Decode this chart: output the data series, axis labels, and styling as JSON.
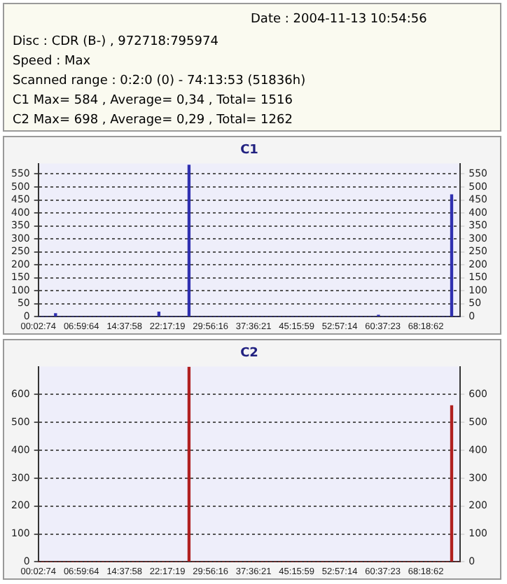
{
  "chart_data": [
    {
      "type": "other",
      "annotations": [
        "Date : 2004-11-13 10:54:56",
        "Disc : CDR (B-) , 972718:795974",
        "Speed : Max",
        "Scanned range : 0:2:0 (0) - 74:13:53 (51836h)",
        "C1 Max= 584 , Average= 0,34 , Total= 1516",
        "C2 Max= 698 , Average= 0,29 , Total= 1262"
      ]
    },
    {
      "type": "bar",
      "title": "C1",
      "categories": [
        "00:02:74",
        null,
        null,
        null,
        null,
        null,
        null,
        null,
        null,
        null,
        "06:59:64",
        null,
        null,
        null,
        null,
        null,
        null,
        null,
        null,
        null,
        "14:37:58",
        null,
        null,
        null,
        null,
        null,
        null,
        null,
        null,
        null,
        "22:17:19",
        null,
        null,
        null,
        null,
        null,
        null,
        null,
        null,
        null,
        "29:56:16",
        null,
        null,
        null,
        null,
        null,
        null,
        null,
        null,
        null,
        "37:36:21",
        null,
        null,
        null,
        null,
        null,
        null,
        null,
        null,
        null,
        "45:15:59",
        null,
        null,
        null,
        null,
        null,
        null,
        null,
        null,
        null,
        "52:57:14",
        null,
        null,
        null,
        null,
        null,
        null,
        null,
        null,
        null,
        "60:37:23",
        null,
        null,
        null,
        null,
        null,
        null,
        null,
        null,
        null,
        "68:18:62",
        null,
        null,
        null,
        null,
        null,
        null,
        null,
        null
      ],
      "values": [
        0,
        0,
        0,
        0,
        12,
        0,
        0,
        0,
        0,
        0,
        0,
        0,
        0,
        0,
        0,
        0,
        0,
        0,
        0,
        0,
        0,
        0,
        0,
        0,
        0,
        0,
        0,
        0,
        18,
        0,
        0,
        0,
        0,
        0,
        0,
        584,
        0,
        0,
        0,
        0,
        0,
        0,
        0,
        0,
        0,
        0,
        0,
        0,
        0,
        0,
        0,
        0,
        0,
        0,
        0,
        0,
        0,
        0,
        0,
        0,
        0,
        0,
        0,
        0,
        0,
        0,
        0,
        0,
        0,
        0,
        0,
        0,
        0,
        0,
        0,
        0,
        0,
        0,
        0,
        6,
        0,
        0,
        0,
        0,
        0,
        0,
        0,
        0,
        0,
        0,
        0,
        0,
        0,
        0,
        0,
        0,
        470,
        0,
        0
      ],
      "color": "#3030b0",
      "ylim": [
        0,
        590
      ],
      "yticks": [
        0,
        50,
        100,
        150,
        200,
        250,
        300,
        350,
        400,
        450,
        500,
        550
      ],
      "y2lim": [
        0,
        590
      ],
      "y2ticks": [
        0,
        50,
        100,
        150,
        200,
        250,
        300,
        350,
        400,
        450,
        500,
        550
      ],
      "grid": "y",
      "line_style": "dotted"
    },
    {
      "type": "bar",
      "title": "C2",
      "categories": [
        "00:02:74",
        null,
        null,
        null,
        null,
        null,
        null,
        null,
        null,
        null,
        "06:59:64",
        null,
        null,
        null,
        null,
        null,
        null,
        null,
        null,
        null,
        "14:37:58",
        null,
        null,
        null,
        null,
        null,
        null,
        null,
        null,
        null,
        "22:17:19",
        null,
        null,
        null,
        null,
        null,
        null,
        null,
        null,
        null,
        "29:56:16",
        null,
        null,
        null,
        null,
        null,
        null,
        null,
        null,
        null,
        "37:36:21",
        null,
        null,
        null,
        null,
        null,
        null,
        null,
        null,
        null,
        "45:15:59",
        null,
        null,
        null,
        null,
        null,
        null,
        null,
        null,
        null,
        "52:57:14",
        null,
        null,
        null,
        null,
        null,
        null,
        null,
        null,
        null,
        "60:37:23",
        null,
        null,
        null,
        null,
        null,
        null,
        null,
        null,
        null,
        "68:18:62",
        null,
        null,
        null,
        null,
        null,
        null,
        null,
        null
      ],
      "values": [
        0,
        0,
        0,
        0,
        0,
        0,
        0,
        0,
        0,
        0,
        0,
        0,
        0,
        0,
        0,
        0,
        0,
        0,
        0,
        0,
        0,
        0,
        0,
        0,
        0,
        0,
        0,
        0,
        0,
        0,
        0,
        0,
        0,
        0,
        0,
        698,
        0,
        0,
        0,
        0,
        0,
        0,
        0,
        0,
        0,
        0,
        0,
        0,
        0,
        0,
        0,
        0,
        0,
        0,
        0,
        0,
        0,
        0,
        0,
        0,
        0,
        0,
        0,
        0,
        0,
        0,
        0,
        0,
        0,
        0,
        0,
        0,
        0,
        0,
        0,
        0,
        0,
        0,
        0,
        0,
        0,
        0,
        0,
        0,
        0,
        0,
        0,
        0,
        0,
        0,
        0,
        0,
        0,
        0,
        0,
        0,
        560,
        0,
        0
      ],
      "color": "#b02020",
      "ylim": [
        0,
        700
      ],
      "yticks": [
        0,
        100,
        200,
        300,
        400,
        500,
        600
      ],
      "y2lim": [
        0,
        700
      ],
      "y2ticks": [
        0,
        100,
        200,
        300,
        400,
        500,
        600
      ],
      "grid": "y",
      "line_style": "dotted"
    }
  ]
}
